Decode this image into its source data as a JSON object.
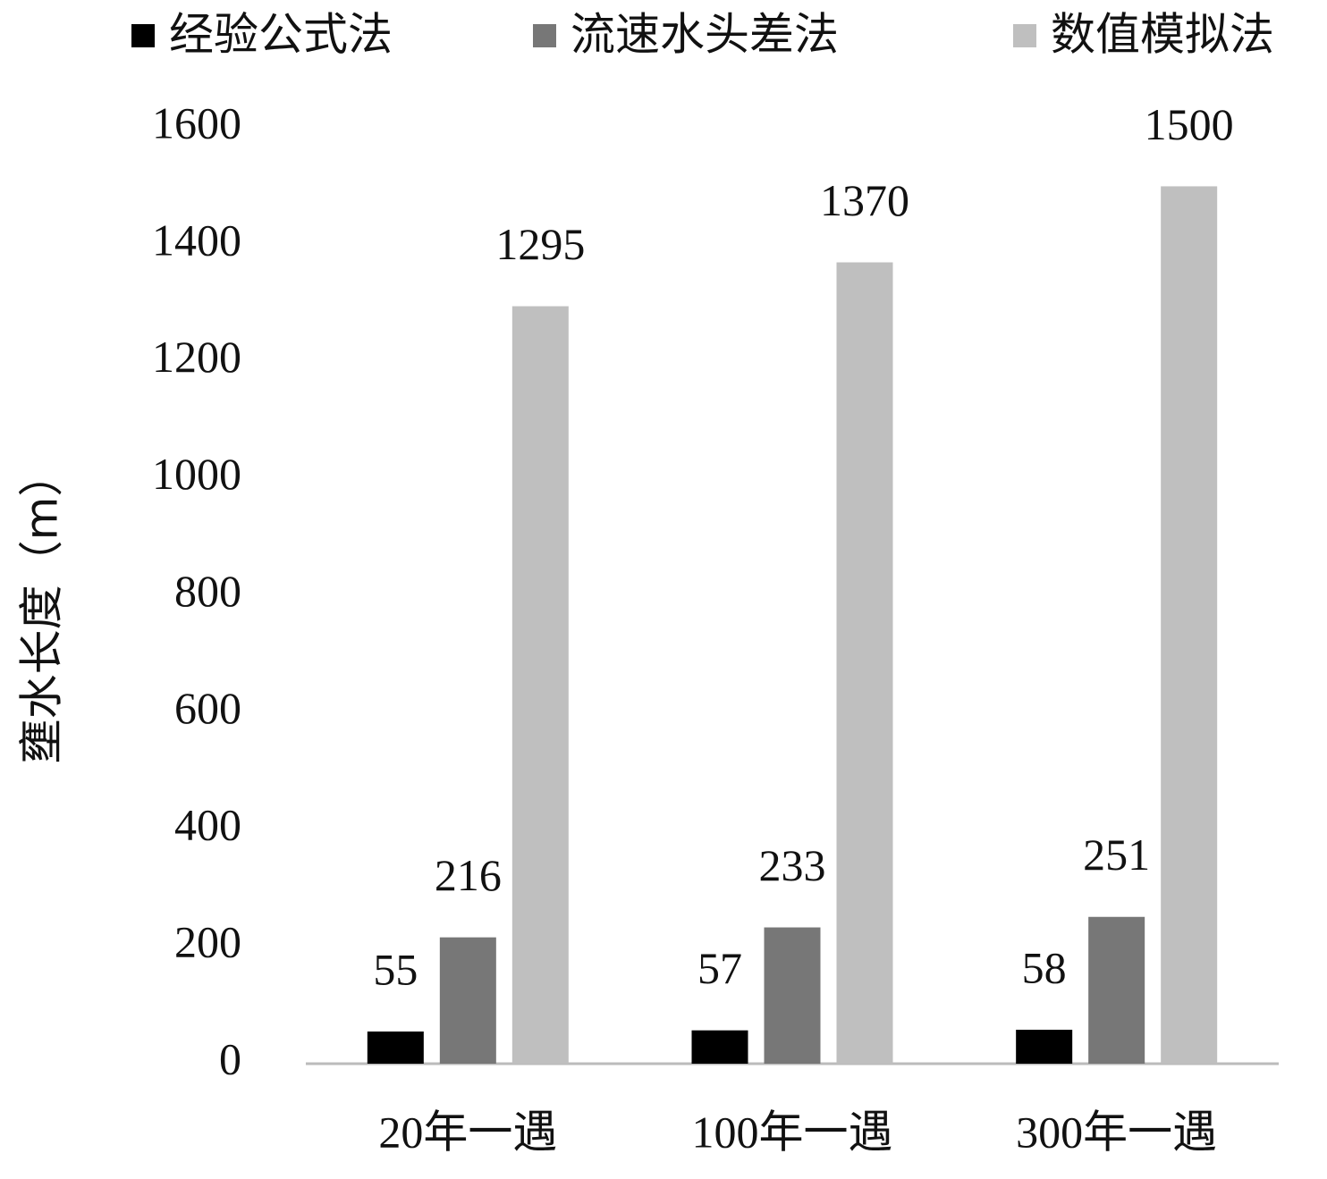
{
  "chart_data": {
    "type": "bar",
    "y_axis_label": "壅水长度（m）",
    "categories": [
      "20年一遇",
      "100年一遇",
      "300年一遇"
    ],
    "series": [
      {
        "name": "经验公式法",
        "color": "#000000",
        "values": [
          55,
          57,
          58
        ]
      },
      {
        "name": "流速水头差法",
        "color": "#777777",
        "values": [
          216,
          233,
          251
        ]
      },
      {
        "name": "数值模拟法",
        "color": "#bfbfbf",
        "values": [
          1295,
          1370,
          1500
        ]
      }
    ],
    "ylim": [
      0,
      1600
    ],
    "yticks": [
      0,
      200,
      400,
      600,
      800,
      1000,
      1200,
      1400,
      1600
    ],
    "grid": false,
    "legend": "top"
  }
}
